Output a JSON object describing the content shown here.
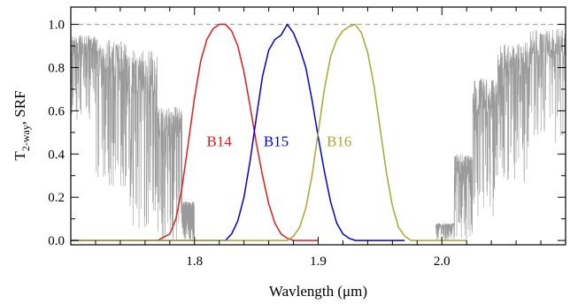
{
  "chart_data": {
    "type": "line",
    "xlabel": "Wavlength (μm)",
    "ylabel_main": "T",
    "ylabel_sub": "2-way",
    "ylabel_tail": ", SRF",
    "xlim": [
      1.7,
      2.1
    ],
    "ylim": [
      -0.02,
      1.08
    ],
    "x_ticks": [
      {
        "value": 1.8,
        "label": "1.8"
      },
      {
        "value": 1.9,
        "label": "1.9"
      },
      {
        "value": 2.0,
        "label": "2.0"
      }
    ],
    "y_ticks": [
      {
        "value": 0.0,
        "label": "0.0"
      },
      {
        "value": 0.2,
        "label": "0.2"
      },
      {
        "value": 0.4,
        "label": "0.4"
      },
      {
        "value": 0.6,
        "label": "0.6"
      },
      {
        "value": 0.8,
        "label": "0.8"
      },
      {
        "value": 1.0,
        "label": "1.0"
      }
    ],
    "reference_line": {
      "y": 1.0,
      "style": "dashed",
      "color": "#999999"
    },
    "transmittance": {
      "color": "#9a9a9a",
      "left_segments": [
        {
          "x0": 1.7,
          "x1": 1.72,
          "hi": 0.95,
          "lo": 0.55
        },
        {
          "x0": 1.72,
          "x1": 1.745,
          "hi": 0.93,
          "lo": 0.25
        },
        {
          "x0": 1.745,
          "x1": 1.77,
          "hi": 0.88,
          "lo": 0.05
        },
        {
          "x0": 1.77,
          "x1": 1.79,
          "hi": 0.62,
          "lo": 0.0
        },
        {
          "x0": 1.79,
          "x1": 1.8,
          "hi": 0.18,
          "lo": 0.0
        }
      ],
      "right_segments": [
        {
          "x0": 1.995,
          "x1": 2.01,
          "hi": 0.08,
          "lo": 0.0
        },
        {
          "x0": 2.01,
          "x1": 2.025,
          "hi": 0.4,
          "lo": 0.0
        },
        {
          "x0": 2.025,
          "x1": 2.045,
          "hi": 0.75,
          "lo": 0.05
        },
        {
          "x0": 2.045,
          "x1": 2.07,
          "hi": 0.92,
          "lo": 0.25
        },
        {
          "x0": 2.07,
          "x1": 2.1,
          "hi": 0.98,
          "lo": 0.45
        }
      ]
    },
    "series": [
      {
        "name": "B14",
        "color": "#e41a1c",
        "label_at": [
          1.82,
          0.46
        ],
        "x": [
          1.7,
          1.77,
          1.78,
          1.785,
          1.79,
          1.795,
          1.8,
          1.805,
          1.81,
          1.815,
          1.82,
          1.825,
          1.83,
          1.835,
          1.84,
          1.845,
          1.85,
          1.855,
          1.86,
          1.865,
          1.87,
          1.875,
          1.88,
          1.9
        ],
        "y": [
          0.0,
          0.0,
          0.03,
          0.1,
          0.25,
          0.45,
          0.66,
          0.83,
          0.93,
          0.98,
          1.0,
          1.0,
          0.97,
          0.9,
          0.78,
          0.62,
          0.45,
          0.3,
          0.17,
          0.08,
          0.03,
          0.01,
          0.0,
          0.0
        ]
      },
      {
        "name": "B15",
        "color": "#0000e0",
        "label_at": [
          1.866,
          0.46
        ],
        "x": [
          1.7,
          1.825,
          1.83,
          1.835,
          1.84,
          1.845,
          1.85,
          1.855,
          1.86,
          1.865,
          1.87,
          1.875,
          1.88,
          1.885,
          1.89,
          1.895,
          1.9,
          1.905,
          1.91,
          1.915,
          1.92,
          1.925,
          1.93,
          1.96,
          1.97
        ],
        "y": [
          0.0,
          0.0,
          0.03,
          0.09,
          0.2,
          0.37,
          0.57,
          0.76,
          0.88,
          0.93,
          0.95,
          1.0,
          0.96,
          0.89,
          0.8,
          0.65,
          0.48,
          0.32,
          0.18,
          0.08,
          0.03,
          0.01,
          0.0,
          0.0,
          0.0
        ]
      },
      {
        "name": "B16",
        "color": "#a8a832",
        "label_at": [
          1.917,
          0.46
        ],
        "x": [
          1.7,
          1.875,
          1.88,
          1.885,
          1.89,
          1.895,
          1.9,
          1.905,
          1.91,
          1.915,
          1.92,
          1.925,
          1.93,
          1.935,
          1.94,
          1.945,
          1.95,
          1.955,
          1.96,
          1.965,
          1.97,
          1.975,
          1.98,
          2.02
        ],
        "y": [
          0.0,
          0.0,
          0.02,
          0.06,
          0.15,
          0.3,
          0.5,
          0.7,
          0.85,
          0.93,
          0.97,
          0.99,
          1.0,
          0.96,
          0.87,
          0.72,
          0.52,
          0.32,
          0.16,
          0.06,
          0.02,
          0.0,
          0.0,
          0.0
        ]
      }
    ]
  }
}
